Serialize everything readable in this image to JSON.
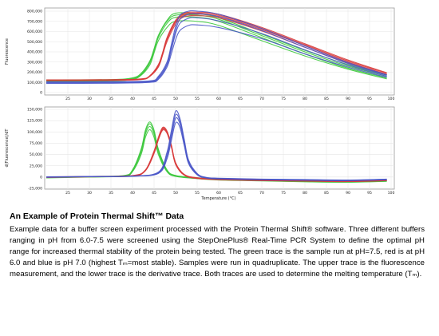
{
  "caption": {
    "title": "An Example of Protein Thermal Shift™ Data",
    "body": "Example data for a buffer screen experiment processed with the Protein Thermal Shift® software. Three different buffers ranging in pH from 6.0-7.5 were screened using the StepOnePlus® Real-Time PCR System to define the optimal pH range for increased thermal stability of the protein being tested. The green trace is the sample run at pH=7.5, red is at pH 6.0 and blue is pH 7.0 (highest Tₘ=most stable). Samples were run in quadruplicate. The upper trace is the fluorescence measurement, and the lower trace is the derivative trace. Both traces are used to determine the melting temperature (Tₘ)."
  },
  "colors": {
    "green": "#3cc83c",
    "red": "#d83a3a",
    "blue": "#4a56c8",
    "grid": "#e6e6e6",
    "axis": "#999999"
  },
  "chart_data": [
    {
      "type": "line",
      "title": "",
      "xlabel": "",
      "ylabel": "Fluorescence",
      "xlim": [
        20,
        100
      ],
      "ylim": [
        0,
        800000
      ],
      "x_ticks": [
        "25",
        "30",
        "35",
        "40",
        "45",
        "50",
        "55",
        "60",
        "65",
        "70",
        "75",
        "80",
        "85",
        "90",
        "95",
        "100"
      ],
      "y_ticks": [
        "0",
        "100,000",
        "200,000",
        "300,000",
        "400,000",
        "500,000",
        "600,000",
        "700,000",
        "800,000"
      ],
      "grid": true,
      "series": [
        {
          "color": "green",
          "x": [
            20,
            35,
            40,
            42,
            44,
            45,
            46,
            48,
            50,
            55,
            60,
            70,
            80,
            90,
            99
          ],
          "y": [
            120000,
            125000,
            140000,
            180000,
            300000,
            420000,
            560000,
            700000,
            760000,
            760000,
            720000,
            560000,
            400000,
            260000,
            160000
          ]
        },
        {
          "color": "green",
          "x": [
            20,
            35,
            40,
            42,
            44,
            45,
            46,
            48,
            50,
            55,
            60,
            70,
            80,
            90,
            99
          ],
          "y": [
            115000,
            120000,
            135000,
            175000,
            290000,
            410000,
            540000,
            680000,
            740000,
            740000,
            700000,
            540000,
            380000,
            240000,
            145000
          ]
        },
        {
          "color": "green",
          "x": [
            20,
            35,
            40,
            42,
            44,
            45,
            46,
            48,
            50,
            55,
            60,
            70,
            80,
            90,
            99
          ],
          "y": [
            110000,
            115000,
            130000,
            170000,
            270000,
            390000,
            510000,
            640000,
            700000,
            700000,
            660000,
            510000,
            360000,
            230000,
            135000
          ]
        },
        {
          "color": "green",
          "x": [
            20,
            35,
            40,
            42,
            44,
            45,
            46,
            48,
            50,
            55,
            60,
            70,
            80,
            90,
            99
          ],
          "y": [
            125000,
            128000,
            145000,
            190000,
            310000,
            430000,
            560000,
            710000,
            780000,
            775000,
            735000,
            575000,
            415000,
            275000,
            170000
          ]
        },
        {
          "color": "red",
          "x": [
            20,
            35,
            42,
            44,
            46,
            47,
            48,
            50,
            52,
            55,
            60,
            70,
            80,
            90,
            99
          ],
          "y": [
            120000,
            122000,
            130000,
            160000,
            260000,
            380000,
            520000,
            690000,
            760000,
            770000,
            750000,
            620000,
            460000,
            300000,
            180000
          ]
        },
        {
          "color": "red",
          "x": [
            20,
            35,
            42,
            44,
            46,
            47,
            48,
            50,
            52,
            55,
            60,
            70,
            80,
            90,
            99
          ],
          "y": [
            118000,
            120000,
            128000,
            158000,
            250000,
            370000,
            500000,
            670000,
            745000,
            755000,
            735000,
            605000,
            445000,
            290000,
            175000
          ]
        },
        {
          "color": "red",
          "x": [
            20,
            35,
            42,
            44,
            46,
            47,
            48,
            50,
            52,
            55,
            60,
            70,
            80,
            90,
            99
          ],
          "y": [
            122000,
            125000,
            132000,
            162000,
            270000,
            390000,
            530000,
            700000,
            770000,
            780000,
            760000,
            630000,
            470000,
            310000,
            190000
          ]
        },
        {
          "color": "red",
          "x": [
            20,
            35,
            42,
            44,
            46,
            47,
            48,
            50,
            52,
            55,
            60,
            70,
            80,
            90,
            99
          ],
          "y": [
            125000,
            127000,
            135000,
            165000,
            275000,
            395000,
            540000,
            710000,
            780000,
            790000,
            770000,
            640000,
            480000,
            320000,
            195000
          ]
        },
        {
          "color": "blue",
          "x": [
            20,
            35,
            44,
            46,
            48,
            49,
            50,
            51,
            53,
            55,
            60,
            70,
            80,
            90,
            99
          ],
          "y": [
            90000,
            92000,
            100000,
            130000,
            250000,
            380000,
            520000,
            610000,
            660000,
            665000,
            640000,
            530000,
            380000,
            250000,
            150000
          ]
        },
        {
          "color": "blue",
          "x": [
            20,
            35,
            44,
            46,
            48,
            49,
            50,
            51,
            53,
            55,
            60,
            70,
            80,
            90,
            99
          ],
          "y": [
            95000,
            97000,
            105000,
            140000,
            270000,
            420000,
            580000,
            680000,
            730000,
            735000,
            705000,
            580000,
            420000,
            270000,
            160000
          ]
        },
        {
          "color": "blue",
          "x": [
            20,
            35,
            44,
            46,
            48,
            49,
            50,
            51,
            53,
            55,
            60,
            70,
            80,
            90,
            99
          ],
          "y": [
            100000,
            102000,
            110000,
            150000,
            280000,
            440000,
            610000,
            720000,
            770000,
            775000,
            745000,
            610000,
            445000,
            285000,
            170000
          ]
        },
        {
          "color": "blue",
          "x": [
            20,
            35,
            44,
            46,
            48,
            49,
            50,
            51,
            53,
            55,
            60,
            70,
            80,
            90,
            99
          ],
          "y": [
            105000,
            107000,
            115000,
            160000,
            300000,
            470000,
            650000,
            760000,
            800000,
            800000,
            770000,
            630000,
            460000,
            295000,
            175000
          ]
        }
      ]
    },
    {
      "type": "line",
      "title": "",
      "xlabel": "Temperature (°C)",
      "ylabel": "d(Fluorescence)/dT",
      "xlim": [
        20,
        100
      ],
      "ylim": [
        -25000,
        150000
      ],
      "x_ticks": [
        "25",
        "30",
        "35",
        "40",
        "45",
        "50",
        "55",
        "60",
        "65",
        "70",
        "75",
        "80",
        "85",
        "90",
        "95",
        "100"
      ],
      "y_ticks": [
        "-25,000",
        "0",
        "25,000",
        "50,000",
        "75,000",
        "100,000",
        "125,000",
        "150,000"
      ],
      "grid": true,
      "series": [
        {
          "color": "green",
          "x": [
            20,
            30,
            38,
            40,
            42,
            43,
            44,
            45,
            46,
            48,
            50,
            55,
            60,
            70,
            80,
            90,
            99
          ],
          "y": [
            0,
            1000,
            3000,
            15000,
            60000,
            100000,
            118000,
            100000,
            60000,
            15000,
            3000,
            -2000,
            -5000,
            -7000,
            -9000,
            -10000,
            -8000
          ]
        },
        {
          "color": "green",
          "x": [
            20,
            30,
            38,
            40,
            42,
            43,
            44,
            45,
            46,
            48,
            50,
            55,
            60,
            70,
            80,
            90,
            99
          ],
          "y": [
            -1000,
            500,
            2500,
            13000,
            55000,
            95000,
            112000,
            95000,
            55000,
            13000,
            2000,
            -3000,
            -6000,
            -8000,
            -10000,
            -11000,
            -9000
          ]
        },
        {
          "color": "green",
          "x": [
            20,
            30,
            38,
            40,
            42,
            43,
            44,
            45,
            46,
            48,
            50,
            55,
            60,
            70,
            80,
            90,
            99
          ],
          "y": [
            -2000,
            0,
            2000,
            12000,
            50000,
            88000,
            105000,
            88000,
            50000,
            12000,
            1500,
            -3500,
            -6500,
            -8500,
            -10500,
            -11500,
            -9500
          ]
        },
        {
          "color": "green",
          "x": [
            20,
            30,
            38,
            40,
            42,
            43,
            44,
            45,
            46,
            48,
            50,
            55,
            60,
            70,
            80,
            90,
            99
          ],
          "y": [
            0,
            1500,
            3500,
            16000,
            62000,
            104000,
            122000,
            104000,
            62000,
            16000,
            3500,
            -1500,
            -4500,
            -6500,
            -8500,
            -9500,
            -7500
          ]
        },
        {
          "color": "red",
          "x": [
            20,
            30,
            40,
            43,
            45,
            46,
            47,
            48,
            49,
            50,
            52,
            55,
            60,
            70,
            80,
            90,
            99
          ],
          "y": [
            0,
            1000,
            3000,
            15000,
            55000,
            85000,
            108000,
            100000,
            70000,
            30000,
            5000,
            -2000,
            -5000,
            -7000,
            -8000,
            -9000,
            -7000
          ]
        },
        {
          "color": "red",
          "x": [
            20,
            30,
            40,
            43,
            45,
            46,
            47,
            48,
            49,
            50,
            52,
            55,
            60,
            70,
            80,
            90,
            99
          ],
          "y": [
            -1000,
            500,
            2500,
            14000,
            52000,
            82000,
            104000,
            97000,
            67000,
            28000,
            4000,
            -3000,
            -6000,
            -8000,
            -9000,
            -10000,
            -8000
          ]
        },
        {
          "color": "red",
          "x": [
            20,
            30,
            40,
            43,
            45,
            46,
            47,
            48,
            49,
            50,
            52,
            55,
            60,
            70,
            80,
            90,
            99
          ],
          "y": [
            500,
            1500,
            3500,
            16000,
            58000,
            88000,
            110000,
            102000,
            72000,
            32000,
            6000,
            -1500,
            -4500,
            -6500,
            -7500,
            -8500,
            -6500
          ]
        },
        {
          "color": "red",
          "x": [
            20,
            30,
            40,
            43,
            45,
            46,
            47,
            48,
            49,
            50,
            52,
            55,
            60,
            70,
            80,
            90,
            99
          ],
          "y": [
            -500,
            1000,
            3000,
            15000,
            54000,
            84000,
            106000,
            99000,
            69000,
            29000,
            5000,
            -2500,
            -5500,
            -7500,
            -8500,
            -9500,
            -7500
          ]
        },
        {
          "color": "blue",
          "x": [
            20,
            30,
            40,
            46,
            48,
            49,
            50,
            51,
            52,
            53,
            55,
            57,
            60,
            70,
            80,
            90,
            99
          ],
          "y": [
            0,
            1000,
            2000,
            8000,
            40000,
            80000,
            120000,
            110000,
            70000,
            30000,
            5000,
            -2000,
            -4000,
            -6000,
            -7000,
            -8000,
            -6000
          ]
        },
        {
          "color": "blue",
          "x": [
            20,
            30,
            40,
            46,
            48,
            49,
            50,
            51,
            52,
            53,
            55,
            57,
            60,
            70,
            80,
            90,
            99
          ],
          "y": [
            -500,
            800,
            1800,
            9000,
            45000,
            88000,
            130000,
            118000,
            75000,
            32000,
            6000,
            -1500,
            -3500,
            -5500,
            -6500,
            -7500,
            -5500
          ]
        },
        {
          "color": "blue",
          "x": [
            20,
            30,
            40,
            46,
            48,
            49,
            50,
            51,
            52,
            53,
            55,
            57,
            60,
            70,
            80,
            90,
            99
          ],
          "y": [
            500,
            1200,
            2200,
            10000,
            50000,
            95000,
            138000,
            124000,
            80000,
            35000,
            7000,
            -1000,
            -3000,
            -5000,
            -6000,
            -7000,
            -5000
          ]
        },
        {
          "color": "blue",
          "x": [
            20,
            30,
            40,
            46,
            48,
            49,
            50,
            51,
            52,
            53,
            55,
            57,
            60,
            70,
            80,
            90,
            99
          ],
          "y": [
            0,
            1000,
            2000,
            11000,
            55000,
            102000,
            146000,
            130000,
            84000,
            38000,
            8000,
            -500,
            -2500,
            -4500,
            -5500,
            -6500,
            -4500
          ]
        }
      ]
    }
  ]
}
